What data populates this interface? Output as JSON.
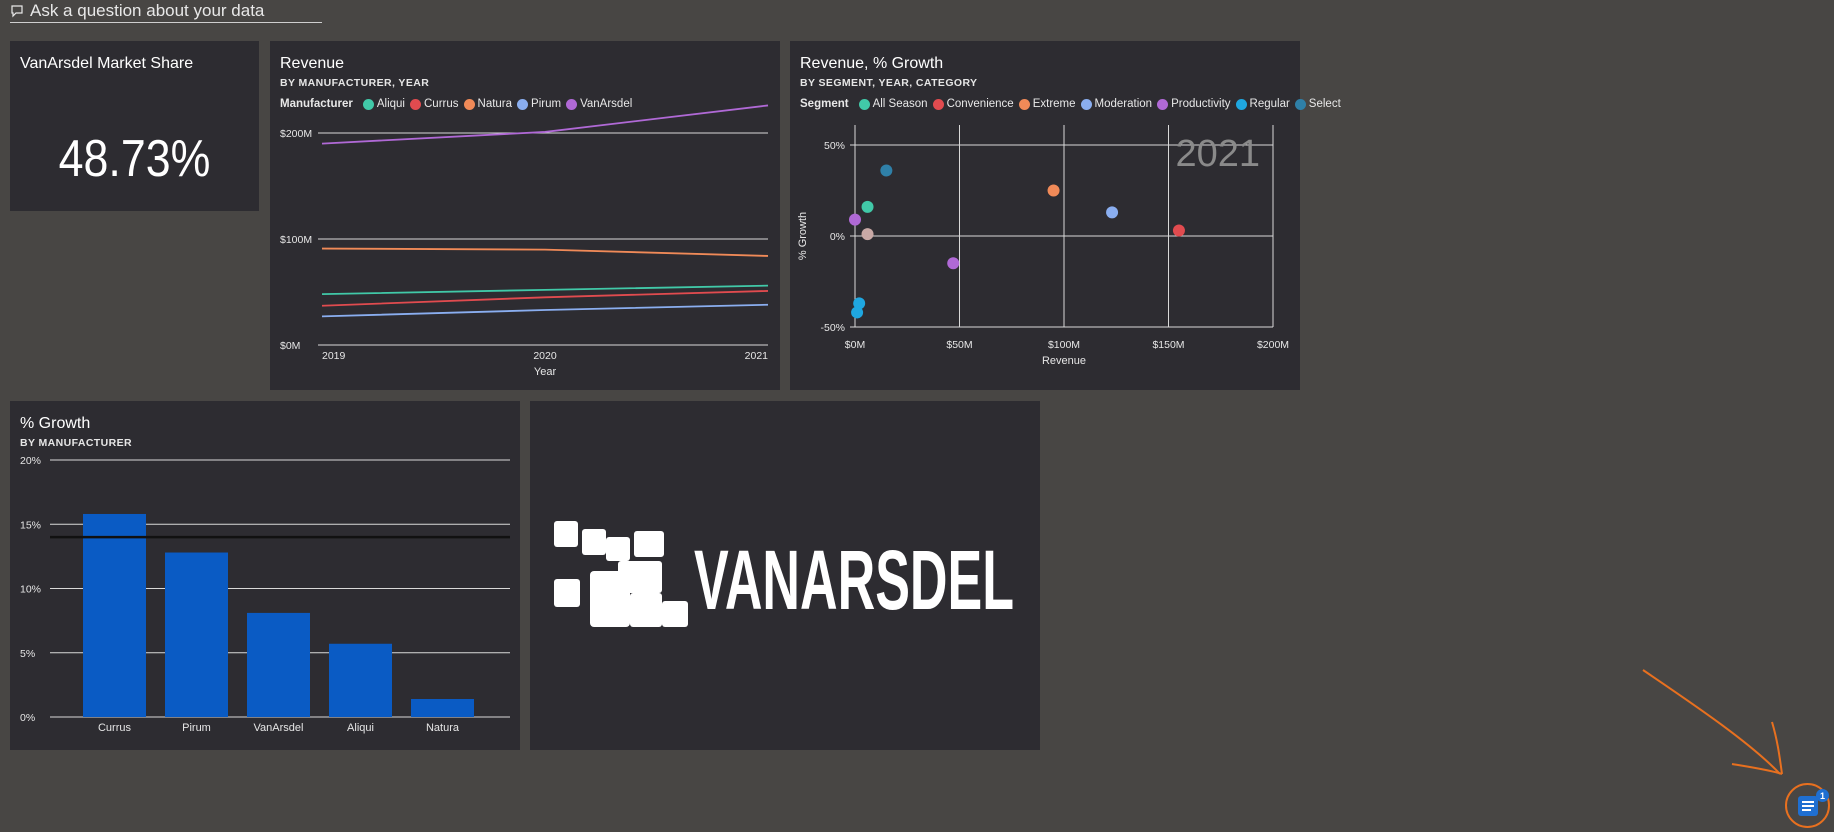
{
  "qa": {
    "placeholder": "Ask a question about your data"
  },
  "kpi": {
    "title": "VanArsdel Market Share",
    "value": "48.73%"
  },
  "revenue": {
    "title": "Revenue",
    "subtitle": "BY MANUFACTURER, YEAR",
    "legend_title": "Manufacturer",
    "legend": [
      {
        "name": "Aliqui",
        "color": "#41c9a8"
      },
      {
        "name": "Currus",
        "color": "#e14b4f"
      },
      {
        "name": "Natura",
        "color": "#f08a58"
      },
      {
        "name": "Pirum",
        "color": "#8aaef0"
      },
      {
        "name": "VanArsdel",
        "color": "#b069d6"
      }
    ]
  },
  "scatter": {
    "title": "Revenue, % Growth",
    "subtitle": "BY SEGMENT, YEAR, CATEGORY",
    "legend_title": "Segment",
    "legend": [
      {
        "name": "All Season",
        "color": "#41c9a8"
      },
      {
        "name": "Convenience",
        "color": "#e14b4f"
      },
      {
        "name": "Extreme",
        "color": "#f08a58"
      },
      {
        "name": "Moderation",
        "color": "#8aaef0"
      },
      {
        "name": "Productivity",
        "color": "#b069d6"
      },
      {
        "name": "Regular",
        "color": "#1fa7e0"
      },
      {
        "name": "Select",
        "color": "#2f80a8"
      }
    ],
    "year_label": "2021"
  },
  "growth": {
    "title": "% Growth",
    "subtitle": "BY MANUFACTURER"
  },
  "logo": {
    "text": "VANARSDEL"
  },
  "chat": {
    "badge": "1",
    "icon": "chat-bot-icon"
  },
  "annotation": {
    "icon": "arrow-annotation",
    "color": "#e8701f"
  },
  "chart_data": [
    {
      "type": "line",
      "title": "Revenue",
      "subtitle": "BY MANUFACTURER, YEAR",
      "xlabel": "Year",
      "ylabel": "",
      "x": [
        2019,
        2020,
        2021
      ],
      "x_ticks": [
        "2019",
        "2020",
        "2021"
      ],
      "ylim": [
        0,
        200000000
      ],
      "y_ticks": [
        "$0M",
        "$100M",
        "$200M"
      ],
      "y_tick_values": [
        0,
        100000000,
        200000000
      ],
      "grid": true,
      "legend_position": "top-left",
      "series": [
        {
          "name": "Aliqui",
          "color": "#41c9a8",
          "values": [
            48000000,
            52000000,
            56000000
          ]
        },
        {
          "name": "Currus",
          "color": "#e14b4f",
          "values": [
            37000000,
            45000000,
            51000000
          ]
        },
        {
          "name": "Natura",
          "color": "#f08a58",
          "values": [
            91000000,
            90000000,
            84000000
          ]
        },
        {
          "name": "Pirum",
          "color": "#8aaef0",
          "values": [
            27000000,
            33000000,
            38000000
          ]
        },
        {
          "name": "VanArsdel",
          "color": "#b069d6",
          "values": [
            190000000,
            201000000,
            226000000
          ]
        }
      ]
    },
    {
      "type": "scatter",
      "title": "Revenue, % Growth",
      "subtitle": "BY SEGMENT, YEAR, CATEGORY",
      "xlabel": "Revenue",
      "ylabel": "% Growth",
      "xlim": [
        0,
        200
      ],
      "x_ticks": [
        "$0M",
        "$50M",
        "$100M",
        "$150M",
        "$200M"
      ],
      "x_tick_values": [
        0,
        50,
        100,
        150,
        200
      ],
      "ylim": [
        -50,
        50
      ],
      "y_ticks": [
        "50%",
        "0%",
        "-50%"
      ],
      "y_tick_values": [
        50,
        0,
        -50
      ],
      "grid": true,
      "legend_position": "top-left",
      "points": [
        {
          "segment": "Select",
          "x": 15,
          "y": 36,
          "color": "#2f80a8"
        },
        {
          "segment": "All Season",
          "x": 6,
          "y": 16,
          "color": "#41c9a8"
        },
        {
          "segment": "Productivity",
          "x": 0,
          "y": 9,
          "color": "#b069d6"
        },
        {
          "segment": "",
          "x": 6,
          "y": 1,
          "color": "#c9a9a6"
        },
        {
          "segment": "Productivity",
          "x": 47,
          "y": -15,
          "color": "#b069d6"
        },
        {
          "segment": "Extreme",
          "x": 95,
          "y": 25,
          "color": "#f08a58"
        },
        {
          "segment": "Moderation",
          "x": 123,
          "y": 13,
          "color": "#8aaef0"
        },
        {
          "segment": "Convenience",
          "x": 155,
          "y": 3,
          "color": "#e14b4f"
        },
        {
          "segment": "Regular",
          "x": 2,
          "y": -37,
          "color": "#1fa7e0"
        },
        {
          "segment": "Regular",
          "x": 1,
          "y": -42,
          "color": "#1fa7e0"
        }
      ]
    },
    {
      "type": "bar",
      "title": "% Growth",
      "subtitle": "BY MANUFACTURER",
      "xlabel": "",
      "ylabel": "",
      "categories": [
        "Currus",
        "Pirum",
        "VanArsdel",
        "Aliqui",
        "Natura"
      ],
      "values": [
        15.8,
        12.8,
        8.1,
        5.7,
        1.4
      ],
      "color": "#0a5bc4",
      "ylim": [
        0,
        20
      ],
      "y_ticks": [
        "0%",
        "5%",
        "10%",
        "15%",
        "20%"
      ],
      "y_tick_values": [
        0,
        5,
        10,
        15,
        20
      ],
      "reference_line": 14,
      "grid": true
    }
  ]
}
